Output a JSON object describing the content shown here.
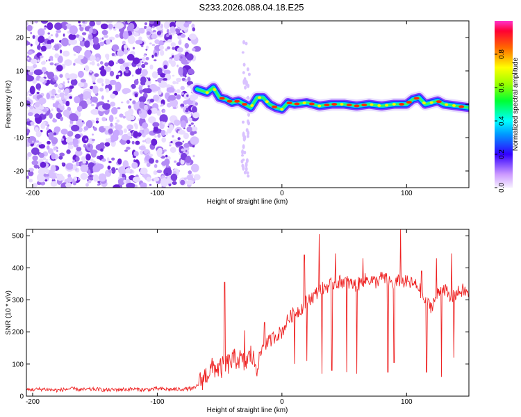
{
  "title": "S233.2026.088.04.18.E25",
  "colors": {
    "spectrogram_noise": "#7b3fe0",
    "snr_line": "#ee2222"
  },
  "chart_data": [
    {
      "type": "heatmap",
      "title": "S233.2026.088.04.18.E25",
      "xlabel": "Height of straight line (km)",
      "ylabel": "Frequency (Hz)",
      "xlim": [
        -205,
        150
      ],
      "ylim": [
        -25,
        25
      ],
      "xticks": [
        -200,
        -100,
        0,
        100
      ],
      "yticks": [
        -20,
        -10,
        0,
        10,
        20
      ],
      "noise_region_km": [
        -205,
        -68
      ],
      "signal_track": {
        "x": [
          -68,
          -60,
          -55,
          -50,
          -45,
          -40,
          -35,
          -30,
          -25,
          -20,
          -15,
          -10,
          -5,
          0,
          5,
          10,
          20,
          30,
          40,
          50,
          60,
          70,
          80,
          90,
          100,
          105,
          110,
          115,
          120,
          125,
          130,
          140,
          150
        ],
        "y": [
          4.5,
          3.5,
          5,
          2,
          1.5,
          0.5,
          1,
          0,
          -1,
          2,
          2,
          0,
          -1,
          -1.5,
          0.5,
          0,
          0.5,
          -0.5,
          0,
          0,
          -0.5,
          0,
          -0.5,
          0,
          0,
          1.5,
          2,
          0,
          0.5,
          1,
          0,
          -0.5,
          -1
        ]
      },
      "colorbar": {
        "label": "Normalized spectral amplitude",
        "range": [
          0,
          1
        ],
        "ticks": [
          0.0,
          0.2,
          0.4,
          0.6,
          0.8
        ]
      }
    },
    {
      "type": "line",
      "xlabel": "Height of straight line (km)",
      "ylabel": "SNR (10 * v/v)",
      "xlim": [
        -205,
        150
      ],
      "ylim": [
        0,
        520
      ],
      "xticks": [
        -200,
        -100,
        0,
        100
      ],
      "yticks": [
        0,
        100,
        200,
        300,
        400,
        500
      ],
      "series": [
        {
          "name": "SNR",
          "x": [
            -205,
            -190,
            -180,
            -170,
            -160,
            -150,
            -140,
            -130,
            -120,
            -110,
            -100,
            -90,
            -80,
            -70,
            -60,
            -55,
            -50,
            -45,
            -40,
            -35,
            -30,
            -25,
            -20,
            -15,
            -10,
            -5,
            0,
            5,
            10,
            15,
            20,
            25,
            30,
            35,
            40,
            45,
            50,
            55,
            60,
            65,
            70,
            75,
            80,
            85,
            90,
            95,
            100,
            105,
            110,
            115,
            120,
            125,
            130,
            135,
            140,
            145,
            150
          ],
          "values": [
            20,
            22,
            18,
            23,
            20,
            22,
            19,
            21,
            22,
            20,
            23,
            21,
            22,
            24,
            70,
            90,
            85,
            95,
            110,
            120,
            100,
            130,
            90,
            160,
            170,
            190,
            200,
            240,
            260,
            270,
            300,
            310,
            330,
            340,
            350,
            355,
            360,
            350,
            345,
            360,
            365,
            355,
            370,
            360,
            350,
            360,
            355,
            350,
            340,
            290,
            280,
            320,
            340,
            300,
            320,
            330,
            320
          ]
        }
      ],
      "peaks": [
        {
          "x": -46,
          "y": 355
        },
        {
          "x": -30,
          "y": 205
        },
        {
          "x": -14,
          "y": 230
        },
        {
          "x": 18,
          "y": 440
        },
        {
          "x": 30,
          "y": 505
        },
        {
          "x": 43,
          "y": 445
        },
        {
          "x": 65,
          "y": 430
        },
        {
          "x": 95,
          "y": 520
        },
        {
          "x": 112,
          "y": 390
        },
        {
          "x": 124,
          "y": 430
        },
        {
          "x": 136,
          "y": 445
        }
      ],
      "dips": [
        {
          "x": 10,
          "y": 100
        },
        {
          "x": 20,
          "y": 110
        },
        {
          "x": 32,
          "y": 70
        },
        {
          "x": 40,
          "y": 80
        },
        {
          "x": 52,
          "y": 75
        },
        {
          "x": 60,
          "y": 70
        },
        {
          "x": 85,
          "y": 75
        },
        {
          "x": 90,
          "y": 105
        },
        {
          "x": 116,
          "y": 75
        },
        {
          "x": 128,
          "y": 60
        },
        {
          "x": 138,
          "y": 120
        }
      ]
    }
  ]
}
